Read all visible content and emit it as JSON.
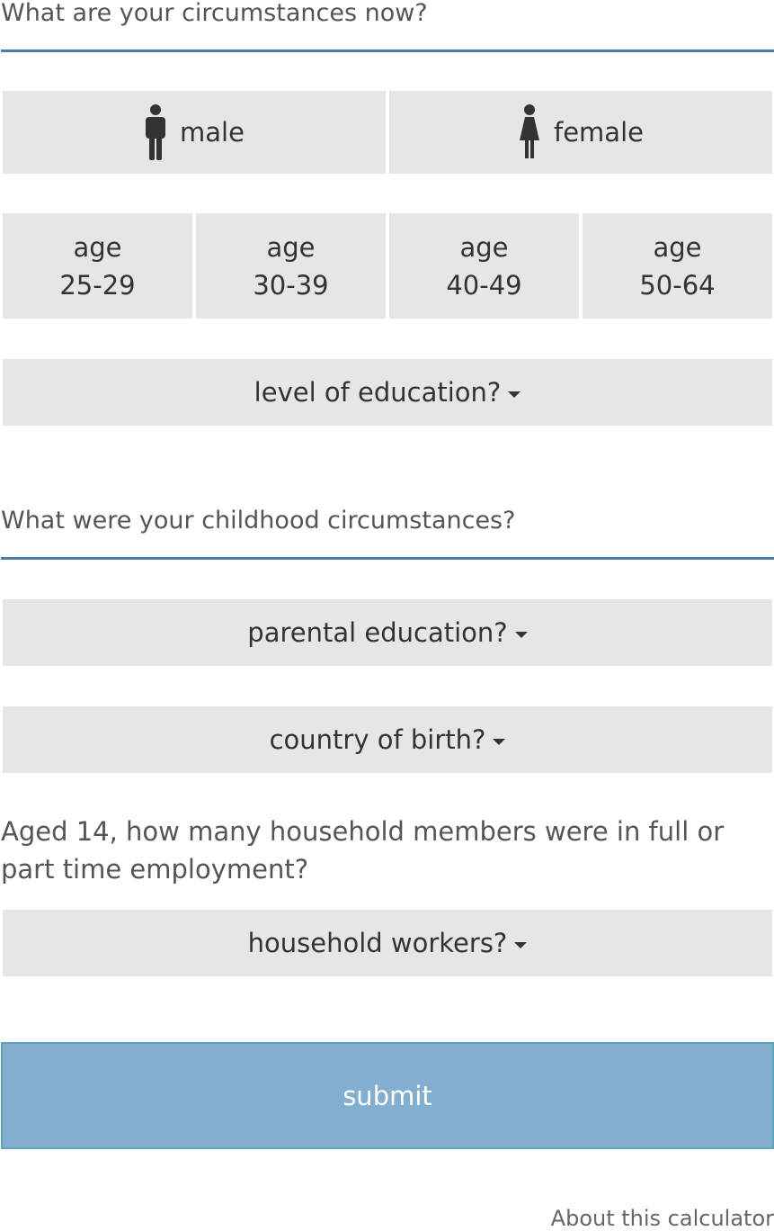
{
  "current": {
    "heading": "What are your circumstances now?",
    "gender": {
      "male_label": "male",
      "male_icon": "male-person-icon",
      "female_label": "female",
      "female_icon": "female-person-icon"
    },
    "ages": [
      {
        "top": "age",
        "range": "25-29"
      },
      {
        "top": "age",
        "range": "30-39"
      },
      {
        "top": "age",
        "range": "40-49"
      },
      {
        "top": "age",
        "range": "50-64"
      }
    ],
    "education_label": "level of education?"
  },
  "childhood": {
    "heading": "What were your childhood circumstances?",
    "parental_label": "parental education?",
    "country_label": "country of birth?",
    "household_question": "Aged 14, how many household members were in full or part time employment?",
    "household_label": "household workers?"
  },
  "actions": {
    "submit_label": "submit",
    "about_link": "About this calculator"
  },
  "colors": {
    "accent_rule": "#4a7fad",
    "button_bg": "#e6e6e6",
    "submit_bg": "#84aecf"
  }
}
